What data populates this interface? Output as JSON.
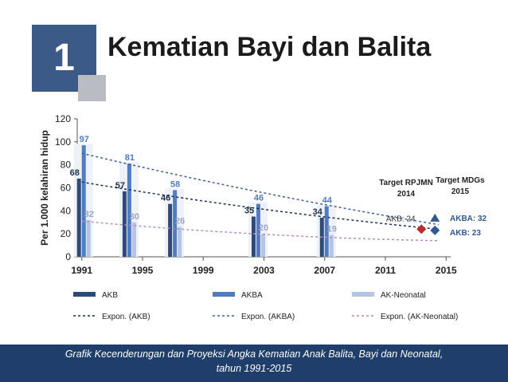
{
  "header": {
    "number": "1",
    "title": "Kematian Bayi dan Balita"
  },
  "caption": {
    "line1": "Grafik Kecenderungan dan Proyeksi Angka Kematian Anak Balita, Bayi dan Neonatal,",
    "line2": "tahun 1991-2015"
  },
  "colors": {
    "header_box": "#3c5a86",
    "caption_bar": "#1f3e6a",
    "akb": "#2d4a78",
    "akba": "#4f7cc2",
    "neonatal": "#b5c4e3"
  },
  "chart_data": {
    "type": "bar",
    "ylabel": "Per 1.000 kelahiran hidup",
    "ylim": [
      0,
      120
    ],
    "yticks": [
      0,
      20,
      40,
      60,
      80,
      100,
      120
    ],
    "xlim": [
      1990.7,
      2015.3
    ],
    "xticks": [
      "1991",
      "1995",
      "1999",
      "2003",
      "2007",
      "2011",
      "2015"
    ],
    "categories": [
      "1991",
      "1994",
      "1997",
      "2002",
      "2007"
    ],
    "x": [
      1991,
      1994,
      1997,
      2002.5,
      2007
    ],
    "series": [
      {
        "name": "AKB",
        "values": [
          68,
          57,
          46,
          35,
          34
        ],
        "color": "#2d4a78"
      },
      {
        "name": "AKBA",
        "values": [
          97,
          81,
          58,
          46,
          44
        ],
        "color": "#4f7cc2"
      },
      {
        "name": "AK-Neonatal",
        "values": [
          32,
          30,
          26,
          20,
          19
        ],
        "color": "#b5c4e3"
      }
    ],
    "trendlines": [
      {
        "name": "Expon. (AKB)",
        "from": [
          1991,
          65
        ],
        "to": [
          2014.5,
          24
        ],
        "color": "#1e2f4e"
      },
      {
        "name": "Expon. (AKBA)",
        "from": [
          1991,
          90
        ],
        "to": [
          2014.5,
          28
        ],
        "color": "#3e5f96"
      },
      {
        "name": "Expon. (AK-Neonatal)",
        "from": [
          1991,
          31
        ],
        "to": [
          2014.5,
          14
        ],
        "color": "#b48fc0"
      }
    ],
    "targets": [
      {
        "label_line1": "Target RPJMN",
        "label_line2": "2014",
        "annotation": "AKB: 24",
        "x": 2014,
        "y": 24,
        "color": "#c0282d"
      },
      {
        "label_line1": "Target MDGs",
        "label_line2": "2015",
        "annotation_akba": "AKBA: 32",
        "annotation_akb": "AKB: 23",
        "x": 2015,
        "y_akba": 32,
        "y_akb": 23,
        "color": "#2f5a96"
      }
    ],
    "legend": {
      "position": "bottom",
      "items": [
        "AKB",
        "AKBA",
        "AK-Neonatal",
        "Expon. (AKB)",
        "Expon. (AKBA)",
        "Expon. (AK-Neonatal)"
      ]
    }
  }
}
